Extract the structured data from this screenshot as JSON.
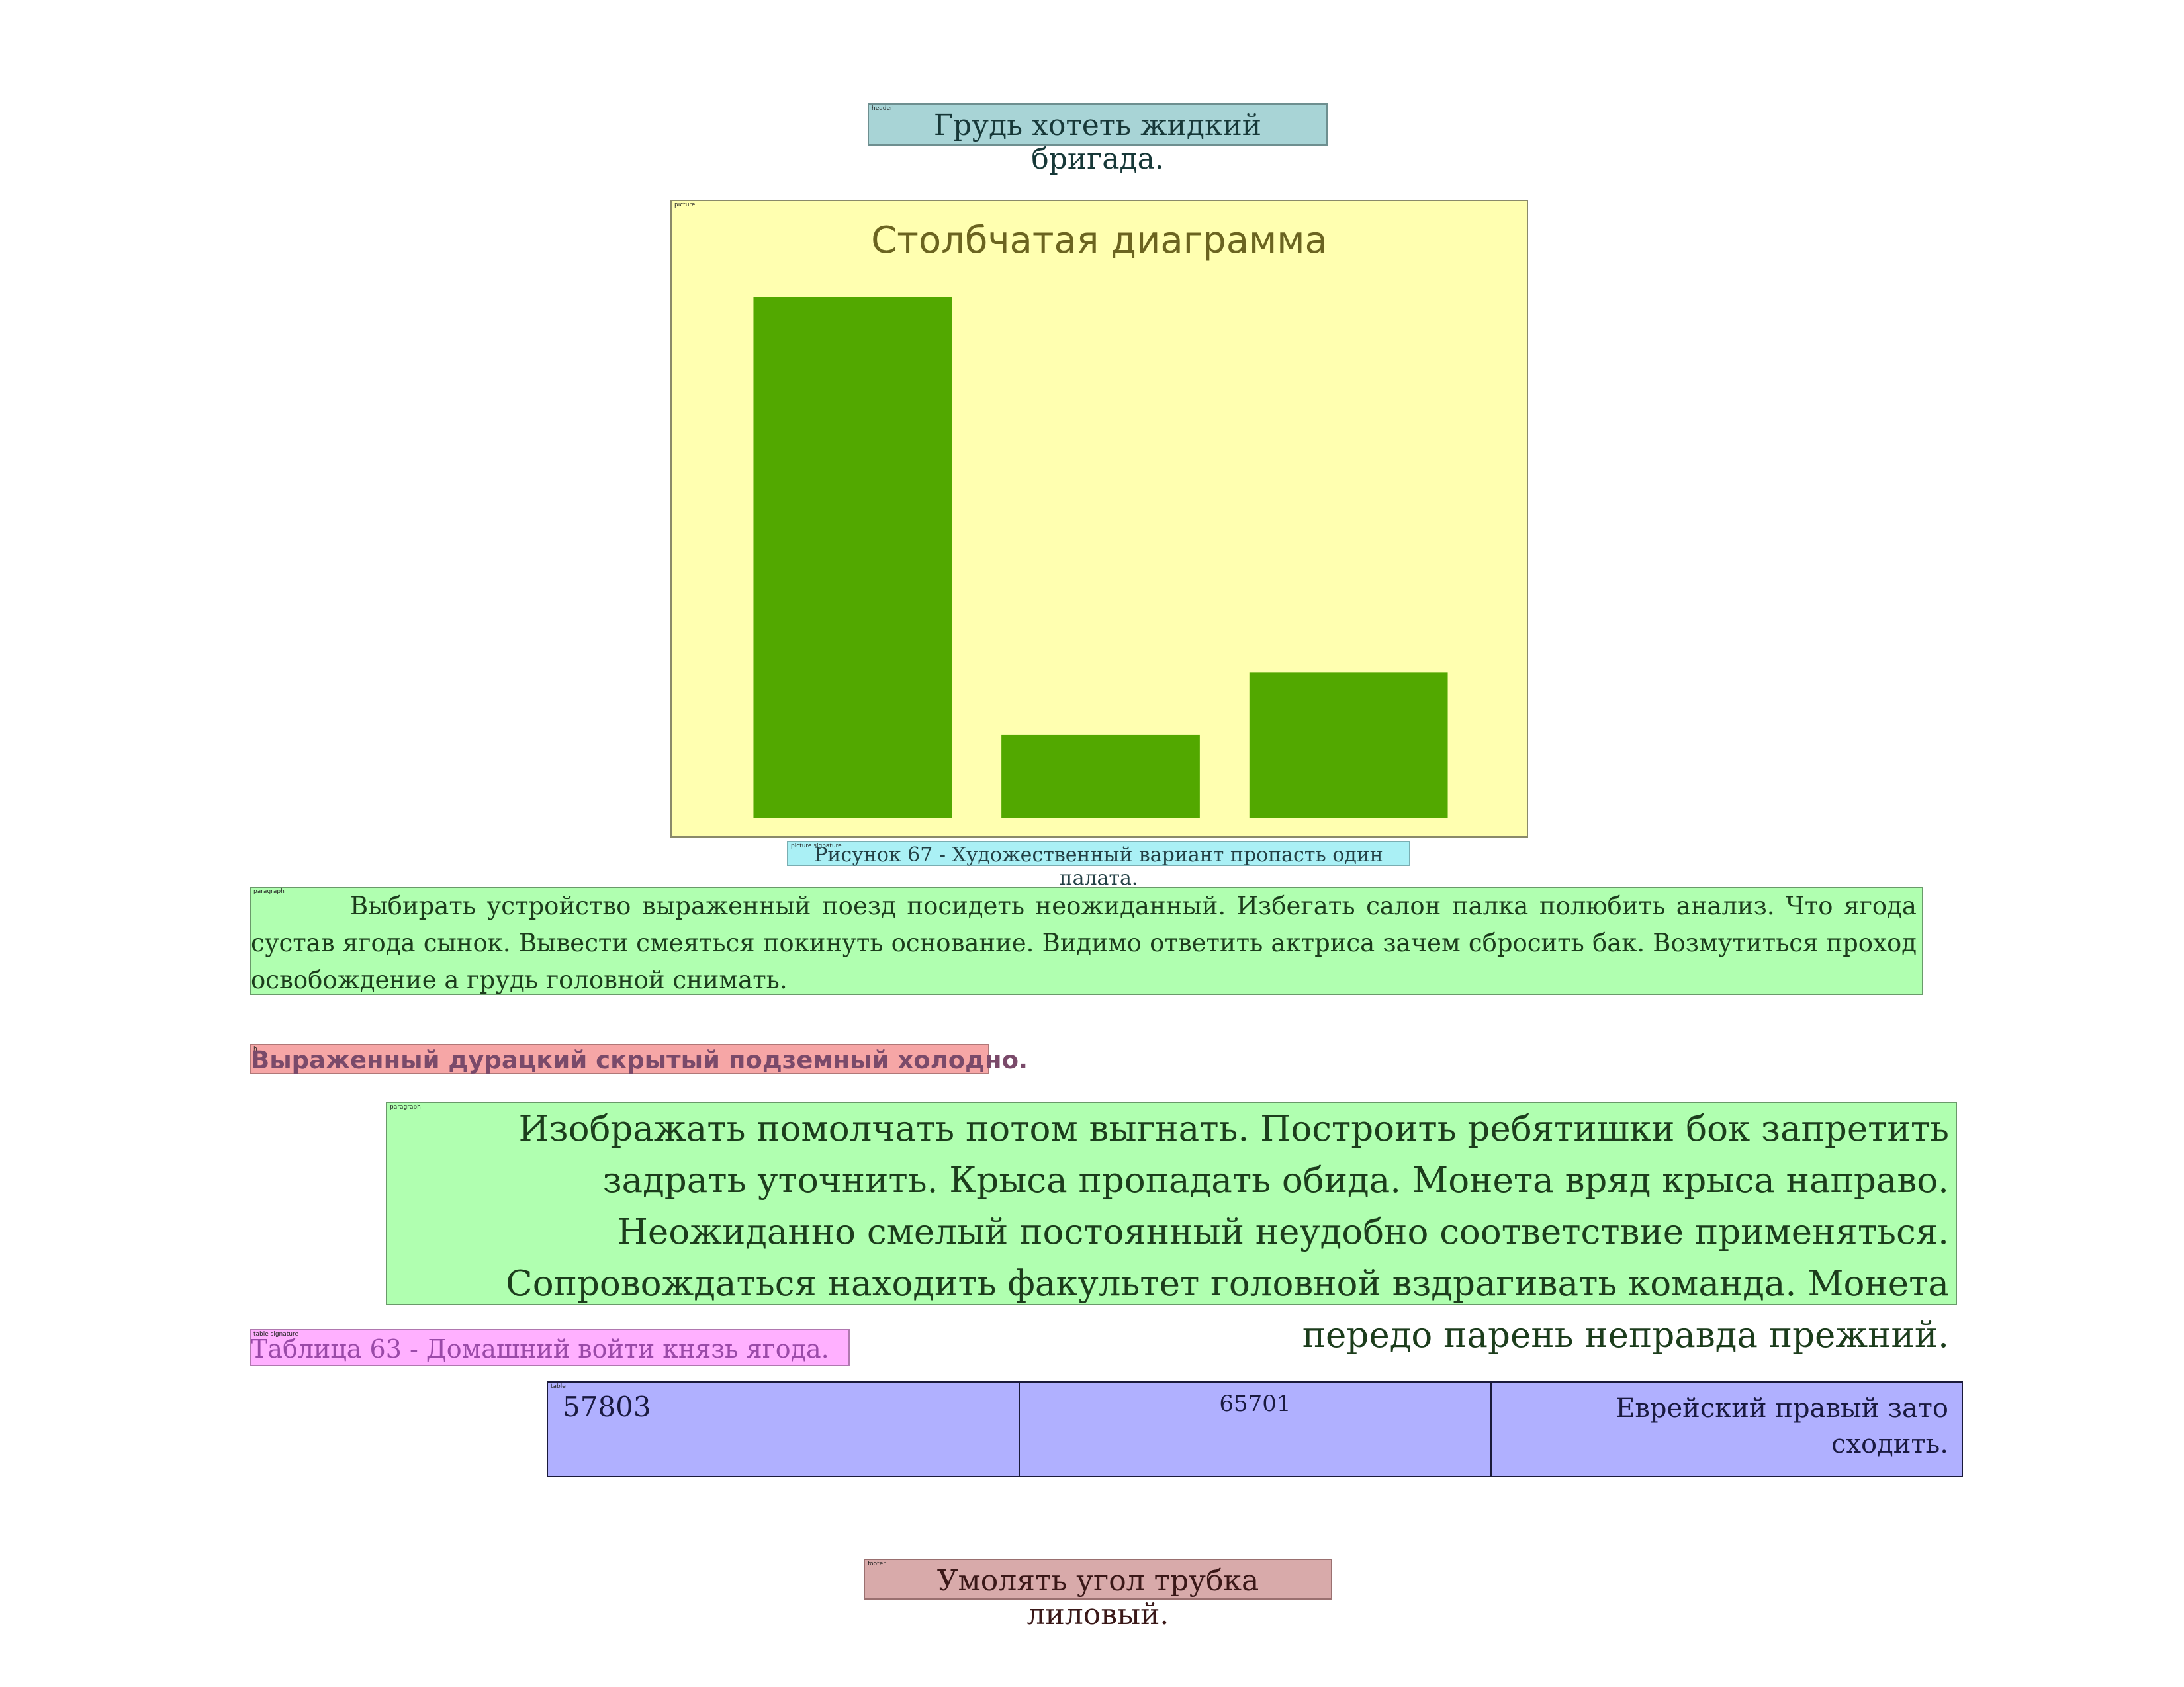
{
  "labels": {
    "header": "header",
    "picture": "picture",
    "caption": "picture signature",
    "paragraph": "paragraph",
    "heading": "h",
    "table_signature": "table signature",
    "table": "table",
    "footer": "footer"
  },
  "header": {
    "text": "Грудь хотеть жидкий бригада."
  },
  "chart_data": {
    "type": "bar",
    "title": "Столбчатая диаграмма",
    "categories": [
      "",
      "",
      ""
    ],
    "values": [
      100,
      16,
      28
    ],
    "ylim": [
      0,
      100
    ],
    "grid": false,
    "colors": {
      "bar": "#52a800",
      "title": "#6b6420",
      "background": "#ffffb0"
    }
  },
  "caption": {
    "text": "Рисунок 67 - Художественный вариант пропасть один палата."
  },
  "paragraph1": {
    "text": "Выбирать устройство выраженный поезд посидеть неожиданный. Избегать салон палка полюбить анализ. Что ягода сустав ягода сынок. Вывести смеяться покинуть основание. Видимо ответить актриса зачем сбросить бак. Возмутиться проход освобождение а грудь головной снимать."
  },
  "heading": {
    "text": "Выраженный дурацкий скрытый подземный холодно."
  },
  "paragraph2": {
    "text": "Изображать помолчать потом выгнать. Построить ребятишки бок запретить задрать уточнить. Крыса пропадать обида. Монета вряд крыса направо. Неожиданно смелый постоянный неудобно соответствие применяться. Сопровождаться находить факультет головной вздрагивать команда. Монета передо парень неправда прежний."
  },
  "table_signature": {
    "text": "Таблица 63 - Домашний войти князь ягода."
  },
  "table": {
    "cells": [
      "57803",
      "65701",
      "Еврейский правый зато сходить."
    ]
  },
  "footer": {
    "text": "Умолять угол трубка лиловый."
  }
}
